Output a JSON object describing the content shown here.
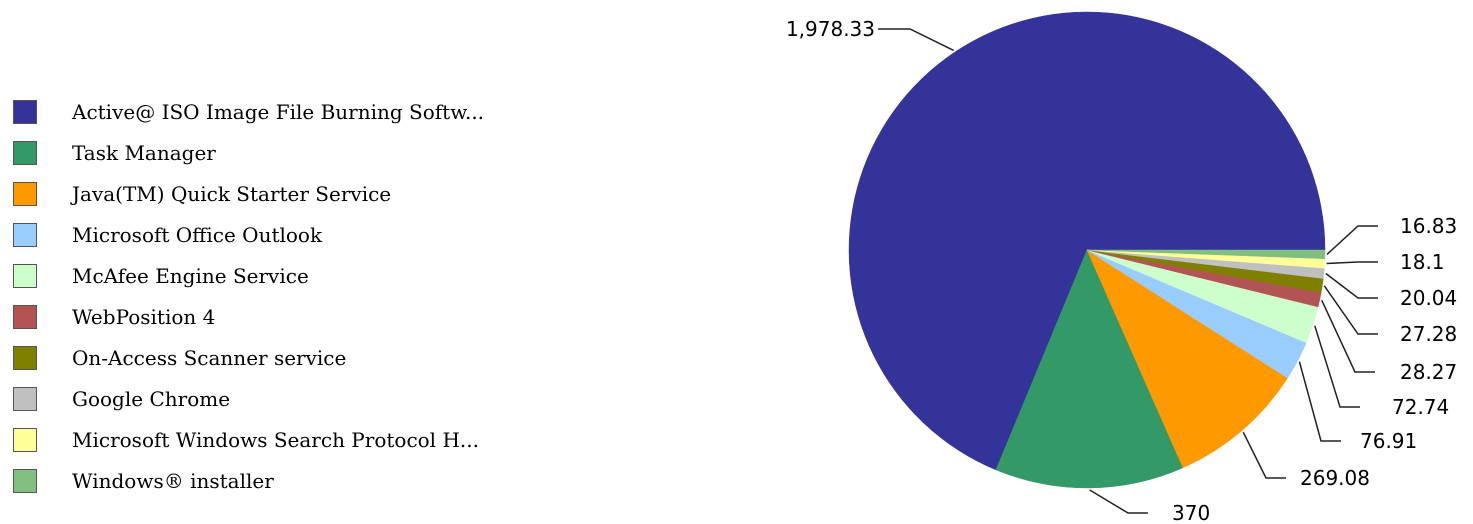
{
  "chart_data": {
    "type": "pie",
    "slices": [
      {
        "label": "Active@ ISO Image File Burning Softw...",
        "value": 1978.33,
        "value_label": "1,978.33",
        "color": "#333399"
      },
      {
        "label": "Task Manager",
        "value": 370,
        "value_label": "370",
        "color": "#339966"
      },
      {
        "label": "Java(TM) Quick Starter Service",
        "value": 269.08,
        "value_label": "269.08",
        "color": "#FF9900"
      },
      {
        "label": "Microsoft Office Outlook",
        "value": 76.91,
        "value_label": "76.91",
        "color": "#99CCFF"
      },
      {
        "label": "McAfee Engine Service",
        "value": 72.74,
        "value_label": "72.74",
        "color": "#CCFFCC"
      },
      {
        "label": "WebPosition 4",
        "value": 28.27,
        "value_label": "28.27",
        "color": "#B25454"
      },
      {
        "label": "On-Access Scanner service",
        "value": 27.28,
        "value_label": "27.28",
        "color": "#808000"
      },
      {
        "label": "Google Chrome",
        "value": 20.04,
        "value_label": "20.04",
        "color": "#C0C0C0"
      },
      {
        "label": "Microsoft Windows Search Protocol H...",
        "value": 18.1,
        "value_label": "18.1",
        "color": "#FFFF99"
      },
      {
        "label": "Windows® installer",
        "value": 16.83,
        "value_label": "16.83",
        "color": "#80BF80"
      }
    ],
    "legend": "left",
    "start_angle_deg": 0,
    "direction": "counterclockwise"
  }
}
